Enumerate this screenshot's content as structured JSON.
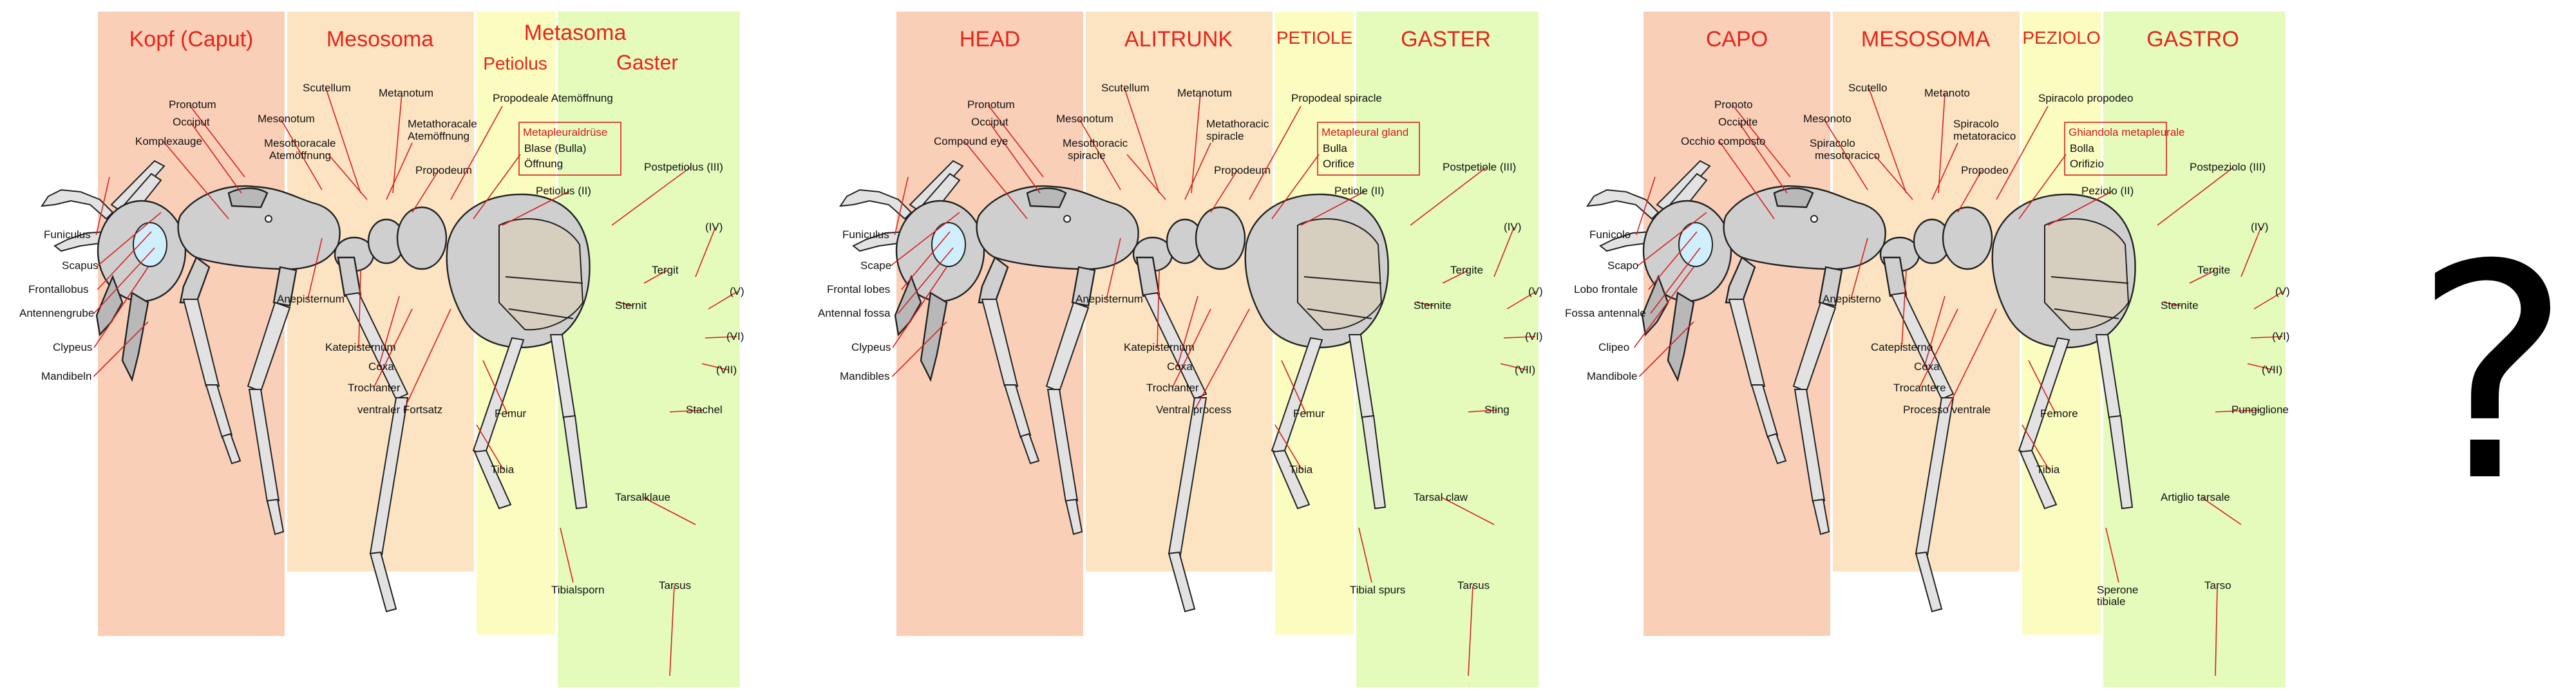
{
  "panels": [
    {
      "lang": "de",
      "bands": {
        "head": "Kopf (Caput)",
        "meso": "Mesosoma",
        "meta": "Metasoma",
        "pet": "Petiolus",
        "gas": "Gaster"
      },
      "labels": {
        "funiculus": "Funiculus",
        "scape": "Scapus",
        "frontal": "Frontallobus",
        "antfossa": "Antennengrube",
        "clypeus": "Clypeus",
        "mandibles": "Mandibeln",
        "pronotum": "Pronotum",
        "occiput": "Occiput",
        "compeye": "Komplexauge",
        "mesonotum": "Mesonotum",
        "scutellum": "Scutellum",
        "metanotum": "Metanotum",
        "mesospir1": "Mesothoracale",
        "mesospir2": "Atemöffnung",
        "metaspir1": "Metathoracale",
        "metaspir2": "Atemöffnung",
        "propodeum": "Propodeum",
        "propspir": "Propodeale Atemöffnung",
        "gland": "Metapleuraldrüse",
        "bulla": "Blase (Bulla)",
        "orifice": "Öffnung",
        "petiole2": "Petiolus (II)",
        "postpet": "Postpetiolus (III)",
        "n4": "(IV)",
        "n5": "(V)",
        "n6": "(VI)",
        "n7": "(VII)",
        "tergite": "Tergit",
        "sternite": "Sternit",
        "anepisternum": "Anepisternum",
        "katepisternum": "Katepisternum",
        "coxa": "Coxa",
        "trochanter": "Trochanter",
        "ventral": "ventraler Fortsatz",
        "femur": "Femur",
        "tibia": "Tibia",
        "sting": "Stachel",
        "claw": "Tarsalklaue",
        "spurs1": "Tibialsporn",
        "spurs2": "",
        "tarsus": "Tarsus"
      }
    },
    {
      "lang": "en",
      "bands": {
        "head": "HEAD",
        "meso": "ALITRUNK",
        "meta": "",
        "pet": "PETIOLE",
        "gas": "GASTER"
      },
      "labels": {
        "funiculus": "Funiculus",
        "scape": "Scape",
        "frontal": "Frontal lobes",
        "antfossa": "Antennal fossa",
        "clypeus": "Clypeus",
        "mandibles": "Mandibles",
        "pronotum": "Pronotum",
        "occiput": "Occiput",
        "compeye": "Compound eye",
        "mesonotum": "Mesonotum",
        "scutellum": "Scutellum",
        "metanotum": "Metanotum",
        "mesospir1": "Mesothoracic",
        "mesospir2": "spiracle",
        "metaspir1": "Metathoracic",
        "metaspir2": "spiracle",
        "propodeum": "Propodeum",
        "propspir": "Propodeal spiracle",
        "gland": "Metapleural gland",
        "bulla": "Bulla",
        "orifice": "Orifice",
        "petiole2": "Petiole (II)",
        "postpet": "Postpetiole (III)",
        "n4": "(IV)",
        "n5": "(V)",
        "n6": "(VI)",
        "n7": "(VII)",
        "tergite": "Tergite",
        "sternite": "Sternite",
        "anepisternum": "Anepisternum",
        "katepisternum": "Katepisternum",
        "coxa": "Coxa",
        "trochanter": "Trochanter",
        "ventral": "Ventral process",
        "femur": "Femur",
        "tibia": "Tibia",
        "sting": "Sting",
        "claw": "Tarsal claw",
        "spurs1": "Tibial spurs",
        "spurs2": "",
        "tarsus": "Tarsus"
      }
    },
    {
      "lang": "it",
      "bands": {
        "head": "CAPO",
        "meso": "MESOSOMA",
        "meta": "",
        "pet": "PEZIOLO",
        "gas": "GASTRO"
      },
      "labels": {
        "funiculus": "Funicolo",
        "scape": "Scapo",
        "frontal": "Lobo frontale",
        "antfossa": "Fossa antennale",
        "clypeus": "Clipeo",
        "mandibles": "Mandibole",
        "pronotum": "Pronoto",
        "occiput": "Occipite",
        "compeye": "Occhio composto",
        "mesonotum": "Mesonoto",
        "scutellum": "Scutello",
        "metanotum": "Metanoto",
        "mesospir1": "Spiracolo",
        "mesospir2": "mesotoracico",
        "metaspir1": "Spiracolo",
        "metaspir2": "metatoracico",
        "propodeum": "Propodeo",
        "propspir": "Spiracolo propodeo",
        "gland": "Ghiandola metapleurale",
        "bulla": "Bolla",
        "orifice": "Orifizio",
        "petiole2": "Peziolo (II)",
        "postpet": "Postpeziolo (III)",
        "n4": "(IV)",
        "n5": "(V)",
        "n6": "(VI)",
        "n7": "(VII)",
        "tergite": "Tergite",
        "sternite": "Sternite",
        "anepisternum": "Anepisterno",
        "katepisternum": "Catepisterno",
        "coxa": "Coxa",
        "trochanter": "Trocantere",
        "ventral": "Processo ventrale",
        "femur": "Femore",
        "tibia": "Tibia",
        "sting": "Pungiglione",
        "claw": "Artiglio tarsale",
        "spurs1": "Sperone",
        "spurs2": "tibiale",
        "tarsus": "Tarso"
      }
    }
  ],
  "question_mark": "?",
  "colors": {
    "head_band": "#f9cfb8",
    "meso_band": "#fce4c2",
    "petiole_band": "#fafcc0",
    "gaster_band": "#e4fbbc",
    "band_title": "#e8241a",
    "leader_line": "#d81f1f",
    "ant_body": "#cfcfcf"
  }
}
